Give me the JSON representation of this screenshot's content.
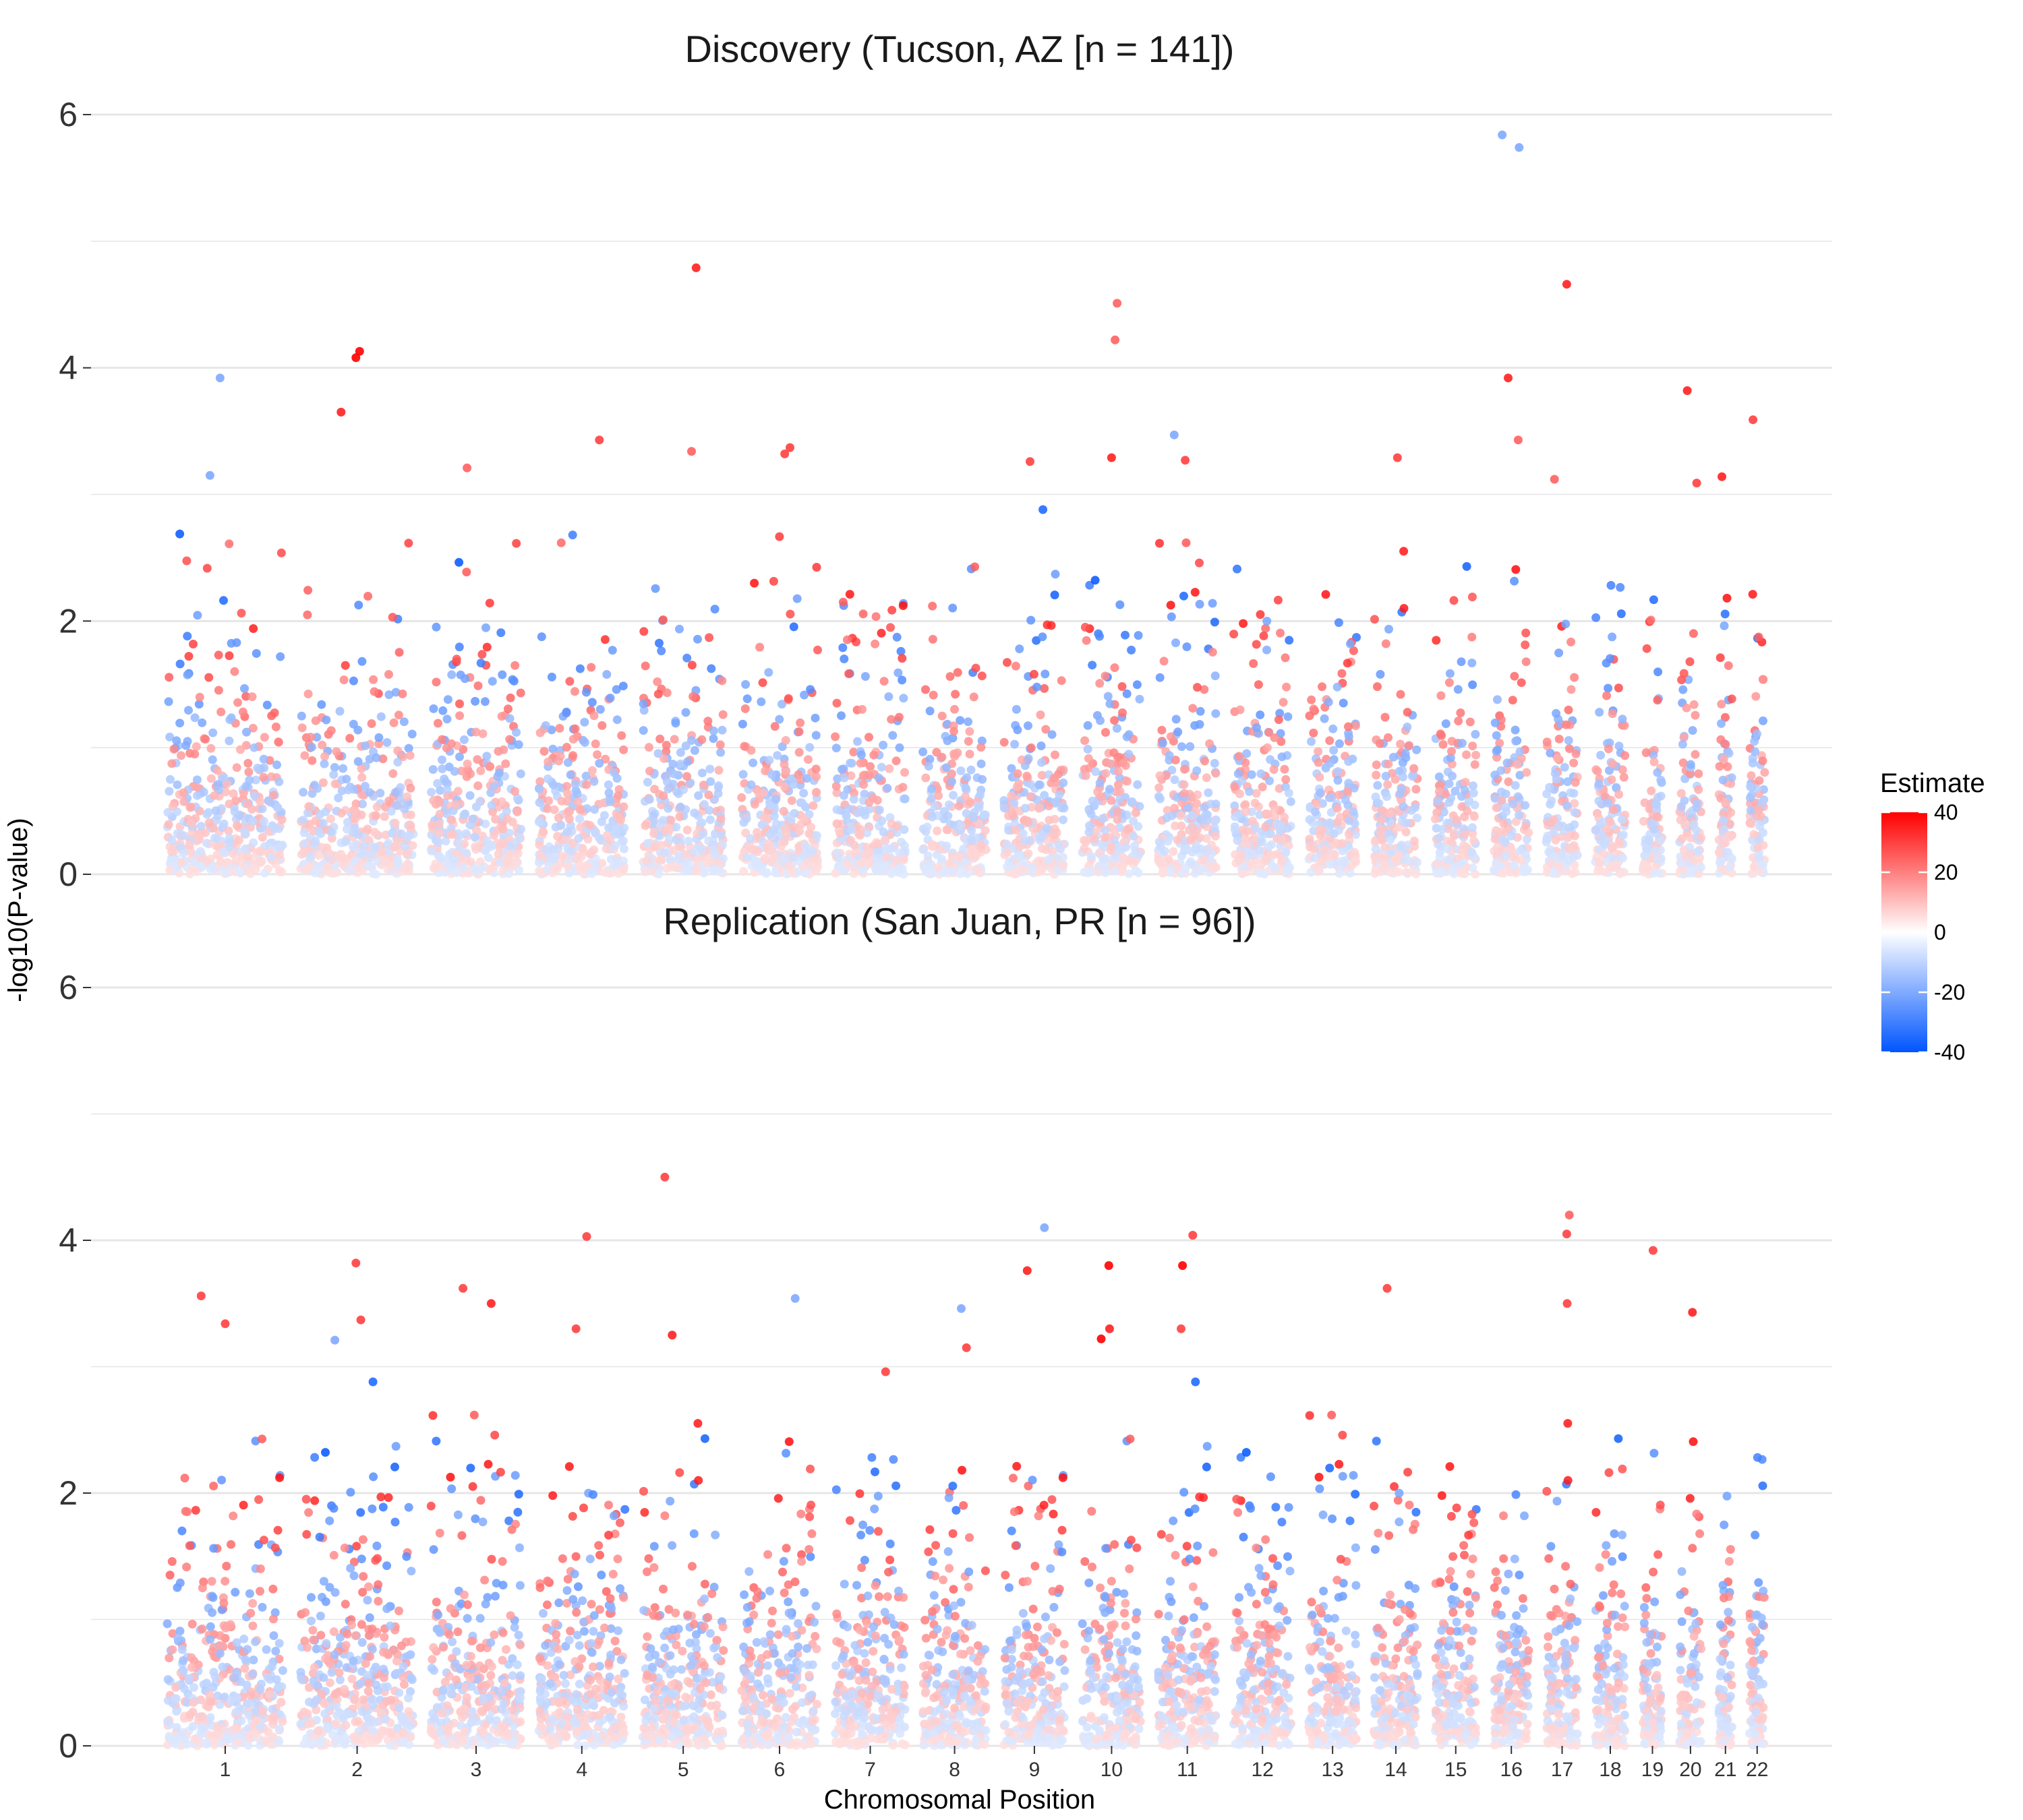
{
  "chart_data": {
    "type": "scatter",
    "ylabel": "-log10(P-value)",
    "xlabel": "Chromosomal Position",
    "y_ticks": [
      "0",
      "2",
      "4",
      "6"
    ],
    "ylim": [
      0,
      6
    ],
    "chromosomes": [
      "1",
      "2",
      "3",
      "4",
      "5",
      "6",
      "7",
      "8",
      "9",
      "10",
      "11",
      "12",
      "13",
      "14",
      "15",
      "16",
      "17",
      "18",
      "19",
      "20",
      "21",
      "22"
    ],
    "grid": "horizontal",
    "legend": {
      "title": "Estimate",
      "ticks": [
        "40",
        "20",
        "0",
        "-20",
        "-40"
      ],
      "range": [
        -40,
        40
      ],
      "colors": {
        "high": "#ff0000",
        "mid": "#ffffff",
        "low": "#0055ff"
      },
      "position": "right"
    },
    "panels": [
      {
        "title": "Discovery (Tucson, AZ [n = 141])",
        "top_hits": [
          {
            "chr": "16",
            "neglog10p": 5.84,
            "estimate": -20
          },
          {
            "chr": "16",
            "neglog10p": 5.74,
            "estimate": -20
          },
          {
            "chr": "5",
            "neglog10p": 4.79,
            "estimate": 35
          },
          {
            "chr": "17",
            "neglog10p": 4.66,
            "estimate": 35
          },
          {
            "chr": "10",
            "neglog10p": 4.51,
            "estimate": 25
          },
          {
            "chr": "10",
            "neglog10p": 4.22,
            "estimate": 25
          },
          {
            "chr": "2",
            "neglog10p": 4.13,
            "estimate": 40
          },
          {
            "chr": "2",
            "neglog10p": 4.08,
            "estimate": 40
          },
          {
            "chr": "1",
            "neglog10p": 3.92,
            "estimate": -20
          },
          {
            "chr": "16",
            "neglog10p": 3.92,
            "estimate": 35
          },
          {
            "chr": "20",
            "neglog10p": 3.82,
            "estimate": 35
          },
          {
            "chr": "2",
            "neglog10p": 3.65,
            "estimate": 35
          },
          {
            "chr": "22",
            "neglog10p": 3.59,
            "estimate": 30
          },
          {
            "chr": "11",
            "neglog10p": 3.47,
            "estimate": -20
          },
          {
            "chr": "4",
            "neglog10p": 3.43,
            "estimate": 30
          },
          {
            "chr": "16",
            "neglog10p": 3.43,
            "estimate": 25
          },
          {
            "chr": "6",
            "neglog10p": 3.37,
            "estimate": 30
          },
          {
            "chr": "5",
            "neglog10p": 3.34,
            "estimate": 25
          },
          {
            "chr": "6",
            "neglog10p": 3.32,
            "estimate": 30
          },
          {
            "chr": "14",
            "neglog10p": 3.29,
            "estimate": 30
          },
          {
            "chr": "10",
            "neglog10p": 3.29,
            "estimate": 35
          },
          {
            "chr": "11",
            "neglog10p": 3.27,
            "estimate": 30
          },
          {
            "chr": "9",
            "neglog10p": 3.26,
            "estimate": 30
          },
          {
            "chr": "3",
            "neglog10p": 3.21,
            "estimate": 25
          },
          {
            "chr": "1",
            "neglog10p": 3.15,
            "estimate": -20
          },
          {
            "chr": "21",
            "neglog10p": 3.14,
            "estimate": 35
          },
          {
            "chr": "17",
            "neglog10p": 3.12,
            "estimate": 25
          },
          {
            "chr": "20",
            "neglog10p": 3.09,
            "estimate": 30
          }
        ]
      },
      {
        "title": "Replication (San Juan, PR [n = 96])",
        "top_hits": [
          {
            "chr": "5",
            "neglog10p": 4.5,
            "estimate": 30
          },
          {
            "chr": "17",
            "neglog10p": 4.2,
            "estimate": 25
          },
          {
            "chr": "9",
            "neglog10p": 4.1,
            "estimate": -20
          },
          {
            "chr": "17",
            "neglog10p": 4.05,
            "estimate": 30
          },
          {
            "chr": "11",
            "neglog10p": 4.04,
            "estimate": 30
          },
          {
            "chr": "4",
            "neglog10p": 4.03,
            "estimate": 30
          },
          {
            "chr": "19",
            "neglog10p": 3.92,
            "estimate": 30
          },
          {
            "chr": "2",
            "neglog10p": 3.82,
            "estimate": 30
          },
          {
            "chr": "10",
            "neglog10p": 3.8,
            "estimate": 40
          },
          {
            "chr": "11",
            "neglog10p": 3.8,
            "estimate": 40
          },
          {
            "chr": "9",
            "neglog10p": 3.76,
            "estimate": 35
          },
          {
            "chr": "3",
            "neglog10p": 3.62,
            "estimate": 30
          },
          {
            "chr": "14",
            "neglog10p": 3.62,
            "estimate": 30
          },
          {
            "chr": "1",
            "neglog10p": 3.56,
            "estimate": 30
          },
          {
            "chr": "6",
            "neglog10p": 3.54,
            "estimate": -20
          },
          {
            "chr": "3",
            "neglog10p": 3.5,
            "estimate": 35
          },
          {
            "chr": "17",
            "neglog10p": 3.5,
            "estimate": 30
          },
          {
            "chr": "8",
            "neglog10p": 3.46,
            "estimate": -20
          },
          {
            "chr": "20",
            "neglog10p": 3.43,
            "estimate": 35
          },
          {
            "chr": "2",
            "neglog10p": 3.37,
            "estimate": 30
          },
          {
            "chr": "1",
            "neglog10p": 3.34,
            "estimate": 30
          },
          {
            "chr": "10",
            "neglog10p": 3.3,
            "estimate": 35
          },
          {
            "chr": "4",
            "neglog10p": 3.3,
            "estimate": 30
          },
          {
            "chr": "11",
            "neglog10p": 3.3,
            "estimate": 30
          },
          {
            "chr": "5",
            "neglog10p": 3.25,
            "estimate": 35
          },
          {
            "chr": "10",
            "neglog10p": 3.22,
            "estimate": 40
          },
          {
            "chr": "2",
            "neglog10p": 3.21,
            "estimate": -20
          },
          {
            "chr": "7",
            "neglog10p": 2.96,
            "estimate": 30
          },
          {
            "chr": "8",
            "neglog10p": 3.15,
            "estimate": 30
          }
        ]
      }
    ]
  }
}
